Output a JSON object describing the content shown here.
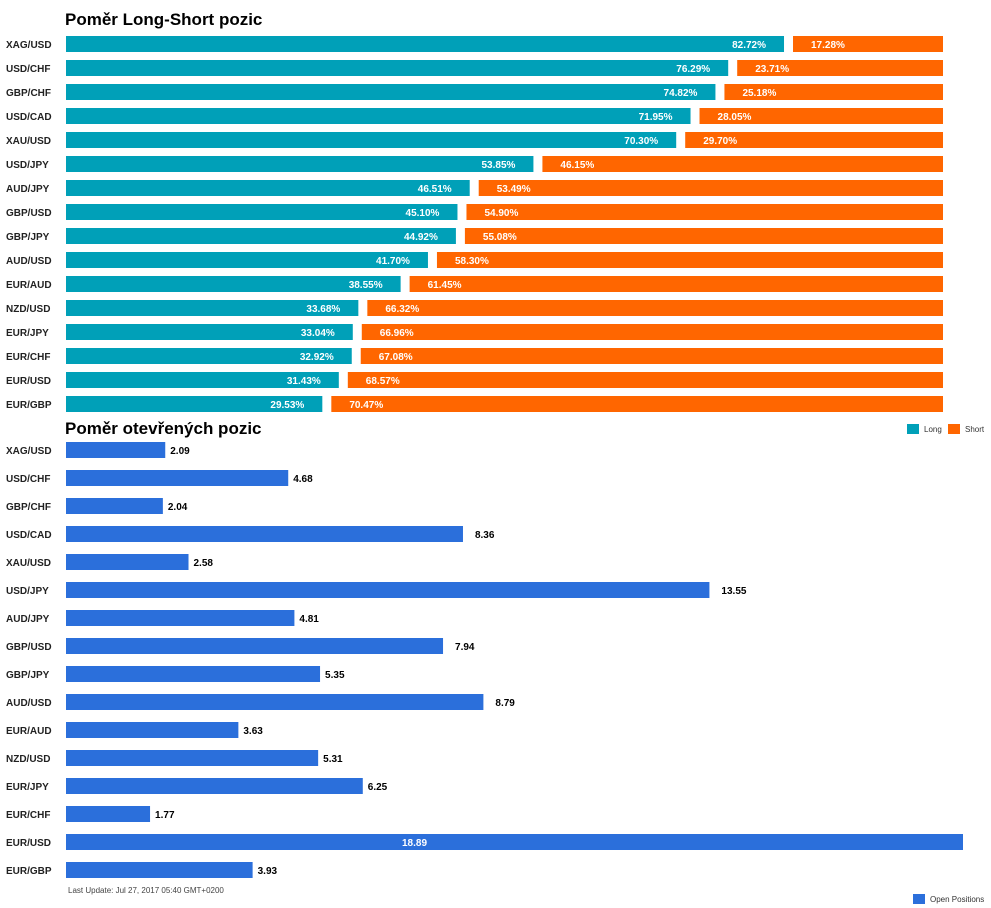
{
  "chart_data": [
    {
      "type": "bar",
      "title": "Poměr Long-Short pozic",
      "orientation": "horizontal",
      "stacked": true,
      "categories": [
        "XAG/USD",
        "USD/CHF",
        "GBP/CHF",
        "USD/CAD",
        "XAU/USD",
        "USD/JPY",
        "AUD/JPY",
        "GBP/USD",
        "GBP/JPY",
        "AUD/USD",
        "EUR/AUD",
        "NZD/USD",
        "EUR/JPY",
        "EUR/CHF",
        "EUR/USD",
        "EUR/GBP"
      ],
      "series": [
        {
          "name": "Long",
          "color": "#00A0B8",
          "values": [
            82.72,
            76.29,
            74.82,
            71.95,
            70.3,
            53.85,
            46.51,
            45.1,
            44.92,
            41.7,
            38.55,
            33.68,
            33.04,
            32.92,
            31.43,
            29.53
          ]
        },
        {
          "name": "Short",
          "color": "#FF6600",
          "values": [
            17.28,
            23.71,
            25.18,
            28.05,
            29.7,
            46.15,
            53.49,
            54.9,
            55.08,
            58.3,
            61.45,
            66.32,
            66.96,
            67.08,
            68.57,
            70.47
          ]
        }
      ],
      "value_labels": {
        "Long": [
          "82.72%",
          "76.29%",
          "74.82%",
          "71.95%",
          "70.30%",
          "53.85%",
          "46.51%",
          "45.10%",
          "44.92%",
          "41.70%",
          "38.55%",
          "33.68%",
          "33.04%",
          "32.92%",
          "31.43%",
          "29.53%"
        ],
        "Short": [
          "17.28%",
          "23.71%",
          "25.18%",
          "28.05%",
          "29.70%",
          "46.15%",
          "53.49%",
          "54.90%",
          "55.08%",
          "58.30%",
          "61.45%",
          "66.32%",
          "66.96%",
          "67.08%",
          "68.57%",
          "70.47%"
        ]
      },
      "xlim": [
        0,
        100
      ],
      "grid": false,
      "legend": "right"
    },
    {
      "type": "bar",
      "title": "Poměr otevřených pozic",
      "orientation": "horizontal",
      "categories": [
        "XAG/USD",
        "USD/CHF",
        "GBP/CHF",
        "USD/CAD",
        "XAU/USD",
        "USD/JPY",
        "AUD/JPY",
        "GBP/USD",
        "GBP/JPY",
        "AUD/USD",
        "EUR/AUD",
        "NZD/USD",
        "EUR/JPY",
        "EUR/CHF",
        "EUR/USD",
        "EUR/GBP"
      ],
      "series": [
        {
          "name": "Open Positions",
          "color": "#2B6FDB",
          "values": [
            2.09,
            4.68,
            2.04,
            8.36,
            2.58,
            13.55,
            4.81,
            7.94,
            5.35,
            8.79,
            3.63,
            5.31,
            6.25,
            1.77,
            18.89,
            3.93
          ]
        }
      ],
      "value_labels": [
        "2.09",
        "4.68",
        "2.04",
        "8.36",
        "2.58",
        "13.55",
        "4.81",
        "7.94",
        "5.35",
        "8.79",
        "3.63",
        "5.31",
        "6.25",
        "1.77",
        "18.89",
        "3.93"
      ],
      "xlim": [
        0,
        18.89
      ],
      "grid": false,
      "legend": "bottom-right"
    }
  ],
  "legend_top": {
    "long_label": "Long",
    "short_label": "Short"
  },
  "legend_bottom": {
    "label": "Open Positions"
  },
  "footer": "Last Update: Jul 27, 2017 05:40 GMT+0200"
}
